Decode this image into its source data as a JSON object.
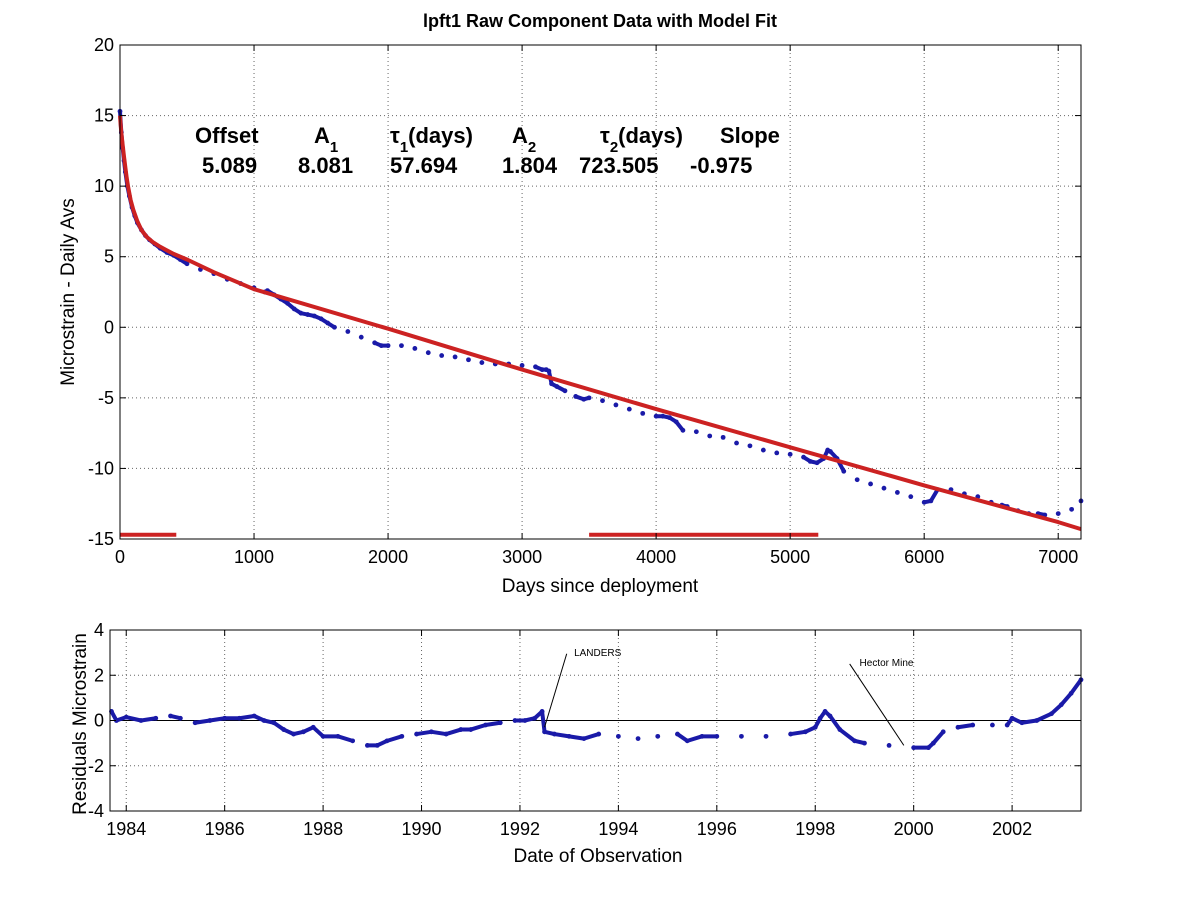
{
  "chart_data": [
    {
      "type": "scatter",
      "title": "lpft1  Raw Component Data with Model Fit",
      "xlabel": "Days since deployment",
      "ylabel": "Microstrain - Daily Avs",
      "xlim": [
        0,
        7170
      ],
      "ylim": [
        -15,
        20
      ],
      "x_ticks": [
        0,
        1000,
        2000,
        3000,
        4000,
        5000,
        6000,
        7000
      ],
      "y_ticks": [
        20,
        15,
        10,
        5,
        0,
        -5,
        -10,
        -15
      ],
      "grid": true,
      "colors": {
        "data": "#1a1aa8",
        "fit": "#cc2222",
        "grid": "#555555"
      },
      "parameters": {
        "headers": [
          {
            "main": "Offset",
            "sub": ""
          },
          {
            "main": "A",
            "sub": "1"
          },
          {
            "main": "τ",
            "sub": "1",
            "suffix": "(days)"
          },
          {
            "main": "A",
            "sub": "2"
          },
          {
            "main": "τ",
            "sub": "2",
            "suffix": "(days)"
          },
          {
            "main": "Slope",
            "sub": ""
          }
        ],
        "values": [
          "5.089",
          "8.081",
          "57.694",
          "1.804",
          "723.505",
          "-0.975"
        ]
      },
      "model": {
        "offset": 5.089,
        "A1": 8.081,
        "tau1": 57.694,
        "A2": 1.804,
        "tau2": 723.505,
        "slope_per_year": -0.975
      },
      "series": [
        {
          "style": "points",
          "x": [
            0,
            10,
            20,
            30,
            40,
            55,
            70,
            90,
            110,
            130,
            160,
            190,
            220,
            260,
            300,
            350,
            400,
            450,
            500,
            600,
            700,
            800,
            900,
            1000,
            1080,
            1100,
            1150,
            1200,
            1250,
            1300,
            1350,
            1400,
            1450,
            1500,
            1550,
            1600,
            1700,
            1800,
            1900,
            1950,
            2000,
            2100,
            2200,
            2300,
            2400,
            2500,
            2600,
            2700,
            2800,
            2900,
            3000,
            3100,
            3150,
            3180,
            3200,
            3220,
            3260,
            3320,
            3400,
            3460,
            3500,
            3600,
            3700,
            3800,
            3900,
            4000,
            4050,
            4100,
            4150,
            4200,
            4300,
            4400,
            4500,
            4600,
            4700,
            4800,
            4900,
            5000,
            5100,
            5150,
            5200,
            5250,
            5280,
            5300,
            5350,
            5400,
            5500,
            5600,
            5700,
            5800,
            5900,
            6000,
            6050,
            6100,
            6200,
            6300,
            6400,
            6500,
            6580,
            6620,
            6700,
            6780,
            6850,
            6900,
            7000,
            7100,
            7170
          ],
          "y": [
            15.3,
            13.8,
            12.7,
            11.8,
            11.0,
            10.0,
            9.3,
            8.5,
            7.9,
            7.4,
            6.9,
            6.5,
            6.2,
            5.9,
            5.6,
            5.3,
            5.1,
            4.8,
            4.5,
            4.1,
            3.8,
            3.4,
            3.1,
            2.8,
            2.5,
            2.6,
            2.3,
            2.0,
            1.7,
            1.3,
            1.0,
            0.9,
            0.8,
            0.6,
            0.3,
            0.0,
            -0.3,
            -0.7,
            -1.1,
            -1.3,
            -1.3,
            -1.3,
            -1.5,
            -1.8,
            -2.0,
            -2.1,
            -2.3,
            -2.5,
            -2.6,
            -2.6,
            -2.7,
            -2.8,
            -3.0,
            -3.0,
            -3.1,
            -4.0,
            -4.2,
            -4.5,
            -4.9,
            -5.1,
            -5.0,
            -5.2,
            -5.5,
            -5.8,
            -6.1,
            -6.3,
            -6.3,
            -6.4,
            -6.7,
            -7.3,
            -7.4,
            -7.7,
            -7.8,
            -8.2,
            -8.4,
            -8.7,
            -8.9,
            -9.0,
            -9.2,
            -9.5,
            -9.6,
            -9.3,
            -8.7,
            -8.8,
            -9.3,
            -10.2,
            -10.8,
            -11.1,
            -11.4,
            -11.7,
            -12.0,
            -12.4,
            -12.3,
            -11.5,
            -11.5,
            -11.8,
            -12.0,
            -12.4,
            -12.6,
            -12.7,
            -13.0,
            -13.2,
            -13.2,
            -13.3,
            -13.2,
            -12.9,
            -12.3
          ]
        },
        {
          "style": "line",
          "x": [
            0,
            5,
            10,
            20,
            30,
            40,
            50,
            60,
            80,
            100,
            130,
            160,
            200,
            250,
            300,
            350,
            400,
            500,
            700,
            1000,
            2000,
            3000,
            4000,
            5000,
            6000,
            7000,
            7170
          ],
          "y": [
            15.0,
            14.3,
            13.8,
            12.9,
            12.1,
            11.3,
            10.6,
            10.0,
            9.0,
            8.3,
            7.5,
            6.9,
            6.4,
            6.0,
            5.7,
            5.45,
            5.2,
            4.8,
            3.9,
            2.7,
            -0.1,
            -3.0,
            -5.8,
            -8.5,
            -11.2,
            -13.8,
            -14.3
          ]
        },
        {
          "style": "segments",
          "segments": [
            [
              0,
              420,
              -14.7
            ],
            [
              3500,
              5210,
              -14.7
            ]
          ]
        }
      ]
    },
    {
      "type": "scatter",
      "xlabel": "Date of Observation",
      "ylabel": "Residuals Microstrain",
      "xlim": [
        1983.67,
        2003.4
      ],
      "ylim": [
        -4,
        4
      ],
      "x_ticks": [
        1984,
        1986,
        1988,
        1990,
        1992,
        1994,
        1996,
        1998,
        2000,
        2002
      ],
      "y_ticks": [
        4,
        2,
        0,
        -2,
        -4
      ],
      "grid": true,
      "zero_line": 0,
      "colors": {
        "data": "#1a1aa8"
      },
      "annotations": [
        {
          "text": "LANDERS",
          "label_x": 1993.1,
          "label_y": 2.85,
          "line_from": [
            1992.95,
            2.95
          ],
          "line_to": [
            1992.5,
            -0.3
          ]
        },
        {
          "text": "Hector Mine",
          "label_x": 1998.9,
          "label_y": 2.4,
          "line_from": [
            1998.7,
            2.5
          ],
          "line_to": [
            1999.8,
            -1.1
          ]
        }
      ],
      "series": [
        {
          "style": "points",
          "x": [
            1983.7,
            1983.8,
            1984.0,
            1984.3,
            1984.6,
            1984.9,
            1985.1,
            1985.4,
            1985.7,
            1986.0,
            1986.3,
            1986.6,
            1986.8,
            1987.0,
            1987.2,
            1987.4,
            1987.6,
            1987.8,
            1988.0,
            1988.3,
            1988.6,
            1988.9,
            1989.1,
            1989.3,
            1989.6,
            1989.9,
            1990.2,
            1990.5,
            1990.8,
            1991.0,
            1991.3,
            1991.6,
            1991.9,
            1992.1,
            1992.3,
            1992.45,
            1992.5,
            1992.7,
            1993.0,
            1993.3,
            1993.6,
            1994.0,
            1994.4,
            1994.8,
            1995.2,
            1995.4,
            1995.7,
            1996.0,
            1996.5,
            1997.0,
            1997.5,
            1997.8,
            1998.0,
            1998.1,
            1998.2,
            1998.3,
            1998.5,
            1998.8,
            1999.0,
            1999.5,
            2000.0,
            2000.3,
            2000.4,
            2000.6,
            2000.9,
            2001.2,
            2001.6,
            2001.9,
            2002.0,
            2002.2,
            2002.5,
            2002.8,
            2003.0,
            2003.2,
            2003.4
          ],
          "y": [
            0.4,
            0.0,
            0.15,
            0.0,
            0.1,
            0.2,
            0.1,
            -0.1,
            0.0,
            0.1,
            0.1,
            0.2,
            0.0,
            -0.1,
            -0.4,
            -0.6,
            -0.5,
            -0.3,
            -0.7,
            -0.7,
            -0.9,
            -1.1,
            -1.1,
            -0.9,
            -0.7,
            -0.6,
            -0.5,
            -0.6,
            -0.4,
            -0.4,
            -0.2,
            -0.1,
            0.0,
            0.0,
            0.1,
            0.4,
            -0.5,
            -0.6,
            -0.7,
            -0.8,
            -0.6,
            -0.7,
            -0.8,
            -0.7,
            -0.6,
            -0.9,
            -0.7,
            -0.7,
            -0.7,
            -0.7,
            -0.6,
            -0.5,
            -0.3,
            0.1,
            0.4,
            0.2,
            -0.4,
            -0.9,
            -1.0,
            -1.1,
            -1.2,
            -1.2,
            -1.0,
            -0.5,
            -0.3,
            -0.2,
            -0.2,
            -0.2,
            0.1,
            -0.1,
            0.0,
            0.3,
            0.7,
            1.2,
            1.8
          ]
        }
      ]
    }
  ]
}
